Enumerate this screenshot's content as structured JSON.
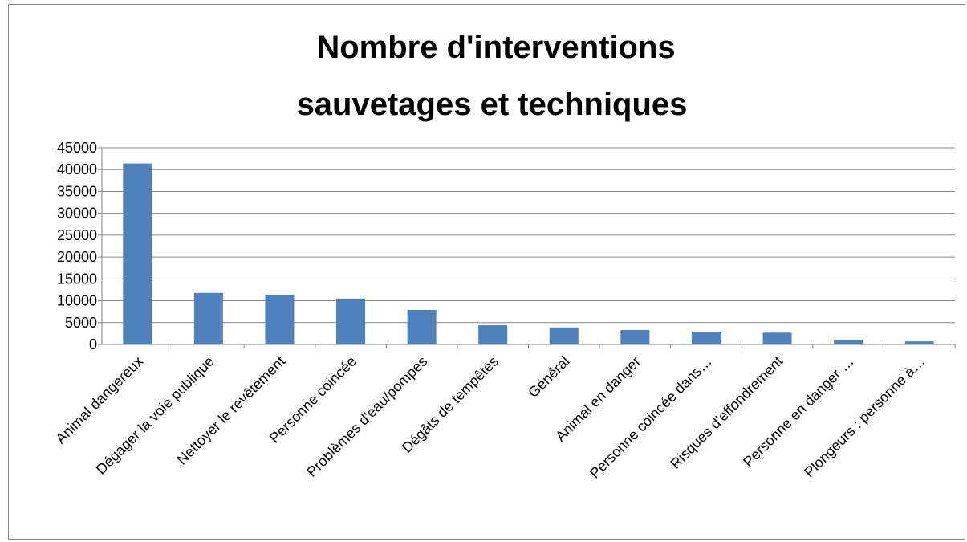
{
  "chart_data": {
    "type": "bar",
    "title": [
      "Nombre d'interventions",
      "sauvetages et techniques"
    ],
    "categories": [
      "Animal dangereux",
      "Dégager la voie publique",
      "Nettoyer le revêtement",
      "Personne coincée",
      "Problèmes d'eau/pompes",
      "Dégâts de tempêtes",
      "Général",
      "Animal en danger",
      "Personne coincée dans…",
      "Risques d'effondrement",
      "Personne en danger …",
      "Plongeurs : personne à…"
    ],
    "values": [
      41400,
      11800,
      11400,
      10500,
      7900,
      4400,
      3900,
      3300,
      2900,
      2700,
      1100,
      700
    ],
    "color": "#4f81bd",
    "ylim": [
      0,
      45000
    ],
    "yticks": [
      0,
      5000,
      10000,
      15000,
      20000,
      25000,
      30000,
      35000,
      40000,
      45000
    ],
    "grid": true
  }
}
